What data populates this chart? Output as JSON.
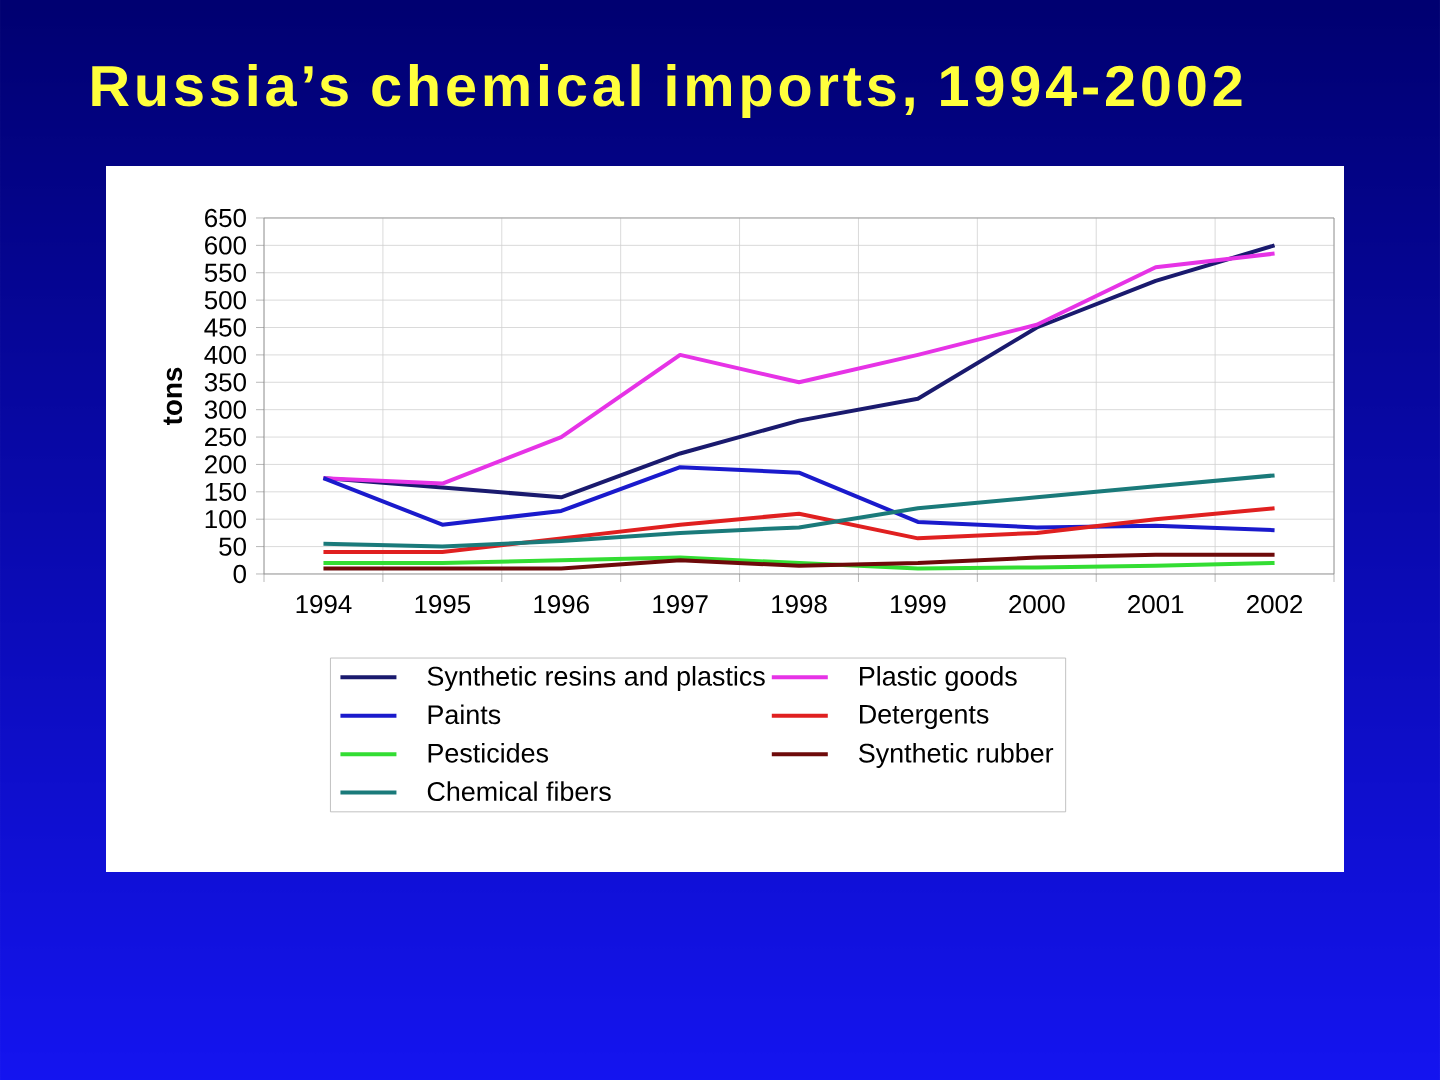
{
  "chart_data": {
    "type": "line",
    "title": "Russia’s chemical imports, 1994-2002",
    "ylabel": "tons",
    "categories": [
      "1994",
      "1995",
      "1996",
      "1997",
      "1998",
      "1999",
      "2000",
      "2001",
      "2002"
    ],
    "ylim": [
      0,
      650
    ],
    "yticks": [
      0,
      50,
      100,
      150,
      200,
      250,
      300,
      350,
      400,
      450,
      500,
      550,
      600,
      650
    ],
    "grid": true,
    "legend": "bottom",
    "series": [
      {
        "name": "Synthetic resins and plastics",
        "color": "#1a1a6e",
        "values": [
          175,
          158,
          140,
          220,
          280,
          320,
          450,
          535,
          600
        ]
      },
      {
        "name": "Plastic goods",
        "color": "#e633e6",
        "values": [
          175,
          165,
          250,
          400,
          350,
          400,
          455,
          560,
          585
        ]
      },
      {
        "name": "Paints",
        "color": "#1a1acc",
        "values": [
          175,
          90,
          115,
          195,
          185,
          95,
          85,
          88,
          80
        ]
      },
      {
        "name": "Detergents",
        "color": "#e02020",
        "values": [
          40,
          40,
          65,
          90,
          110,
          65,
          75,
          100,
          120
        ]
      },
      {
        "name": "Pesticides",
        "color": "#33dd33",
        "values": [
          20,
          20,
          25,
          30,
          20,
          10,
          12,
          15,
          20
        ]
      },
      {
        "name": "Synthetic rubber",
        "color": "#6e0a0a",
        "values": [
          10,
          10,
          10,
          25,
          15,
          20,
          30,
          35,
          35
        ]
      },
      {
        "name": "Chemical  fibers",
        "color": "#1a7a7a",
        "values": [
          55,
          50,
          60,
          75,
          85,
          120,
          140,
          160,
          180
        ]
      }
    ]
  }
}
